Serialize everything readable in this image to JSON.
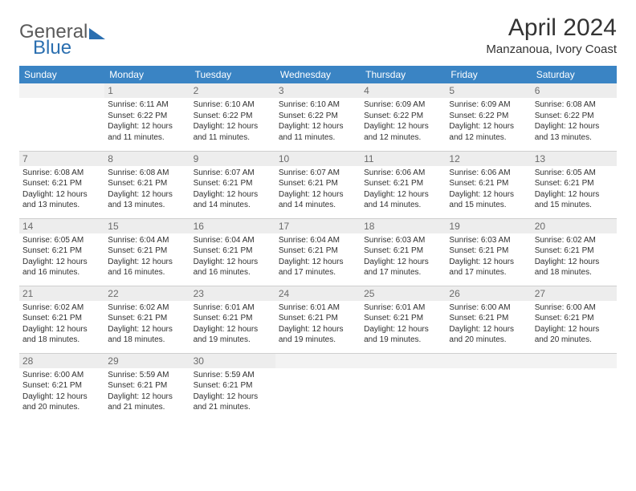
{
  "brand": {
    "part1": "General",
    "part2": "Blue"
  },
  "title": "April 2024",
  "location": "Manzanoua, Ivory Coast",
  "colors": {
    "header_bg": "#3a84c4",
    "header_text": "#ffffff",
    "daynum_bg": "#ededed",
    "daynum_text": "#6b6b6b",
    "body_text": "#303030",
    "brand_grey": "#5a5a5a",
    "brand_blue": "#2b6fb0"
  },
  "typography": {
    "title_fontsize": 30,
    "location_fontsize": 15,
    "dayhead_fontsize": 12,
    "cell_fontsize": 10
  },
  "day_headers": [
    "Sunday",
    "Monday",
    "Tuesday",
    "Wednesday",
    "Thursday",
    "Friday",
    "Saturday"
  ],
  "weeks": [
    [
      {
        "n": "",
        "lines": []
      },
      {
        "n": "1",
        "lines": [
          "Sunrise: 6:11 AM",
          "Sunset: 6:22 PM",
          "Daylight: 12 hours and 11 minutes."
        ]
      },
      {
        "n": "2",
        "lines": [
          "Sunrise: 6:10 AM",
          "Sunset: 6:22 PM",
          "Daylight: 12 hours and 11 minutes."
        ]
      },
      {
        "n": "3",
        "lines": [
          "Sunrise: 6:10 AM",
          "Sunset: 6:22 PM",
          "Daylight: 12 hours and 11 minutes."
        ]
      },
      {
        "n": "4",
        "lines": [
          "Sunrise: 6:09 AM",
          "Sunset: 6:22 PM",
          "Daylight: 12 hours and 12 minutes."
        ]
      },
      {
        "n": "5",
        "lines": [
          "Sunrise: 6:09 AM",
          "Sunset: 6:22 PM",
          "Daylight: 12 hours and 12 minutes."
        ]
      },
      {
        "n": "6",
        "lines": [
          "Sunrise: 6:08 AM",
          "Sunset: 6:22 PM",
          "Daylight: 12 hours and 13 minutes."
        ]
      }
    ],
    [
      {
        "n": "7",
        "lines": [
          "Sunrise: 6:08 AM",
          "Sunset: 6:21 PM",
          "Daylight: 12 hours and 13 minutes."
        ]
      },
      {
        "n": "8",
        "lines": [
          "Sunrise: 6:08 AM",
          "Sunset: 6:21 PM",
          "Daylight: 12 hours and 13 minutes."
        ]
      },
      {
        "n": "9",
        "lines": [
          "Sunrise: 6:07 AM",
          "Sunset: 6:21 PM",
          "Daylight: 12 hours and 14 minutes."
        ]
      },
      {
        "n": "10",
        "lines": [
          "Sunrise: 6:07 AM",
          "Sunset: 6:21 PM",
          "Daylight: 12 hours and 14 minutes."
        ]
      },
      {
        "n": "11",
        "lines": [
          "Sunrise: 6:06 AM",
          "Sunset: 6:21 PM",
          "Daylight: 12 hours and 14 minutes."
        ]
      },
      {
        "n": "12",
        "lines": [
          "Sunrise: 6:06 AM",
          "Sunset: 6:21 PM",
          "Daylight: 12 hours and 15 minutes."
        ]
      },
      {
        "n": "13",
        "lines": [
          "Sunrise: 6:05 AM",
          "Sunset: 6:21 PM",
          "Daylight: 12 hours and 15 minutes."
        ]
      }
    ],
    [
      {
        "n": "14",
        "lines": [
          "Sunrise: 6:05 AM",
          "Sunset: 6:21 PM",
          "Daylight: 12 hours and 16 minutes."
        ]
      },
      {
        "n": "15",
        "lines": [
          "Sunrise: 6:04 AM",
          "Sunset: 6:21 PM",
          "Daylight: 12 hours and 16 minutes."
        ]
      },
      {
        "n": "16",
        "lines": [
          "Sunrise: 6:04 AM",
          "Sunset: 6:21 PM",
          "Daylight: 12 hours and 16 minutes."
        ]
      },
      {
        "n": "17",
        "lines": [
          "Sunrise: 6:04 AM",
          "Sunset: 6:21 PM",
          "Daylight: 12 hours and 17 minutes."
        ]
      },
      {
        "n": "18",
        "lines": [
          "Sunrise: 6:03 AM",
          "Sunset: 6:21 PM",
          "Daylight: 12 hours and 17 minutes."
        ]
      },
      {
        "n": "19",
        "lines": [
          "Sunrise: 6:03 AM",
          "Sunset: 6:21 PM",
          "Daylight: 12 hours and 17 minutes."
        ]
      },
      {
        "n": "20",
        "lines": [
          "Sunrise: 6:02 AM",
          "Sunset: 6:21 PM",
          "Daylight: 12 hours and 18 minutes."
        ]
      }
    ],
    [
      {
        "n": "21",
        "lines": [
          "Sunrise: 6:02 AM",
          "Sunset: 6:21 PM",
          "Daylight: 12 hours and 18 minutes."
        ]
      },
      {
        "n": "22",
        "lines": [
          "Sunrise: 6:02 AM",
          "Sunset: 6:21 PM",
          "Daylight: 12 hours and 18 minutes."
        ]
      },
      {
        "n": "23",
        "lines": [
          "Sunrise: 6:01 AM",
          "Sunset: 6:21 PM",
          "Daylight: 12 hours and 19 minutes."
        ]
      },
      {
        "n": "24",
        "lines": [
          "Sunrise: 6:01 AM",
          "Sunset: 6:21 PM",
          "Daylight: 12 hours and 19 minutes."
        ]
      },
      {
        "n": "25",
        "lines": [
          "Sunrise: 6:01 AM",
          "Sunset: 6:21 PM",
          "Daylight: 12 hours and 19 minutes."
        ]
      },
      {
        "n": "26",
        "lines": [
          "Sunrise: 6:00 AM",
          "Sunset: 6:21 PM",
          "Daylight: 12 hours and 20 minutes."
        ]
      },
      {
        "n": "27",
        "lines": [
          "Sunrise: 6:00 AM",
          "Sunset: 6:21 PM",
          "Daylight: 12 hours and 20 minutes."
        ]
      }
    ],
    [
      {
        "n": "28",
        "lines": [
          "Sunrise: 6:00 AM",
          "Sunset: 6:21 PM",
          "Daylight: 12 hours and 20 minutes."
        ]
      },
      {
        "n": "29",
        "lines": [
          "Sunrise: 5:59 AM",
          "Sunset: 6:21 PM",
          "Daylight: 12 hours and 21 minutes."
        ]
      },
      {
        "n": "30",
        "lines": [
          "Sunrise: 5:59 AM",
          "Sunset: 6:21 PM",
          "Daylight: 12 hours and 21 minutes."
        ]
      },
      {
        "n": "",
        "lines": []
      },
      {
        "n": "",
        "lines": []
      },
      {
        "n": "",
        "lines": []
      },
      {
        "n": "",
        "lines": []
      }
    ]
  ]
}
